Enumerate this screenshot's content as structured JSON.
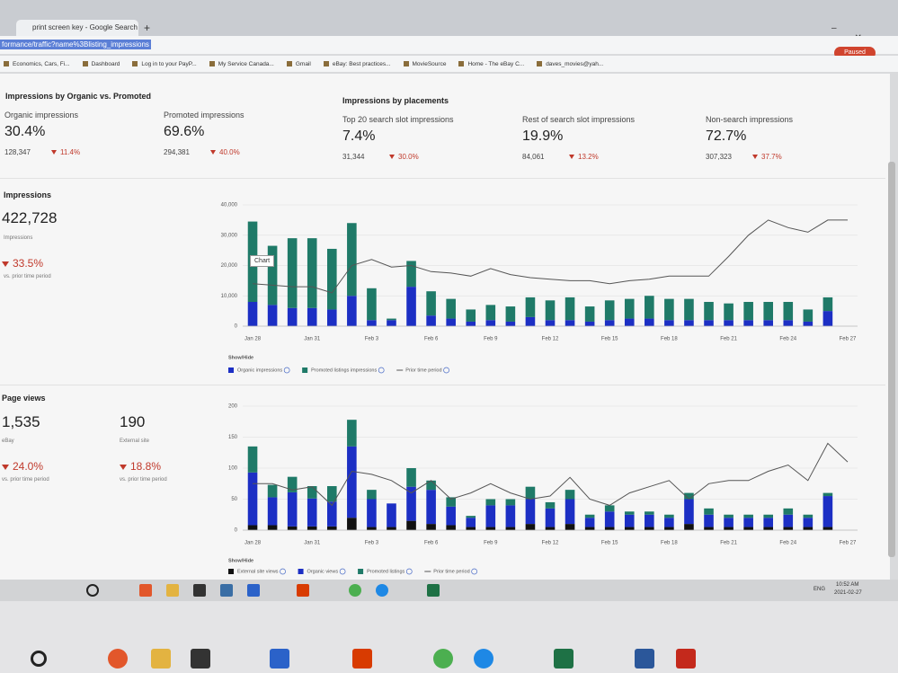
{
  "browser": {
    "tab_title": "print screen key - Google Search",
    "address": "formance/traffic?name%3Blisting_impressions",
    "profile_button": "Paused",
    "bookmarks": [
      "Economics, Cars, Fi...",
      "Dashboard",
      "Log in to your PayP...",
      "My Service Canada...",
      "Gmail",
      "eBay: Best practices...",
      "MovieSource",
      "Home - The eBay C...",
      "daves_movies@yah..."
    ]
  },
  "summary_organic_promoted": {
    "title": "Impressions by Organic vs. Promoted",
    "metrics": [
      {
        "label": "Organic impressions",
        "percent": "30.4%",
        "count": "128,347",
        "change": "11.4%"
      },
      {
        "label": "Promoted impressions",
        "percent": "69.6%",
        "count": "294,381",
        "change": "40.0%"
      }
    ]
  },
  "summary_placements": {
    "title": "Impressions by placements",
    "metrics": [
      {
        "label": "Top 20 search slot impressions",
        "percent": "7.4%",
        "count": "31,344",
        "change": "30.0%"
      },
      {
        "label": "Rest of search slot impressions",
        "percent": "19.9%",
        "count": "84,061",
        "change": "13.2%"
      },
      {
        "label": "Non-search impressions",
        "percent": "72.7%",
        "count": "307,323",
        "change": "37.7%"
      }
    ]
  },
  "impressions_panel": {
    "title": "Impressions",
    "total": "422,728",
    "total_label": "Impressions",
    "change": "33.5%",
    "change_label": "vs. prior time period",
    "tooltip": "Chart",
    "show_hide": "Show/Hide"
  },
  "page_views_panel": {
    "title": "Page views",
    "show_hide": "Show/Hide",
    "metrics": [
      {
        "value": "1,535",
        "label": "eBay",
        "change": "24.0%",
        "change_label": "vs. prior time period"
      },
      {
        "value": "190",
        "label": "External site",
        "change": "18.8%",
        "change_label": "vs. prior time period"
      }
    ]
  },
  "taskbar": {
    "language": "ENG",
    "time": "10:52 AM",
    "date": "2021-02-27"
  },
  "chart_data": [
    {
      "type": "bar",
      "stacked": true,
      "grid": true,
      "categories": [
        "Jan 28",
        null,
        null,
        "Jan 31",
        null,
        null,
        "Feb 3",
        null,
        null,
        "Feb 6",
        null,
        null,
        "Feb 9",
        null,
        null,
        "Feb 12",
        null,
        null,
        "Feb 15",
        null,
        null,
        "Feb 18",
        null,
        null,
        "Feb 21",
        null,
        null,
        "Feb 24",
        null,
        null,
        "Feb 27"
      ],
      "ylim": [
        0,
        40000
      ],
      "yticks": [
        0,
        {
          "value": 10000,
          "label": "10,000"
        },
        {
          "value": 20000,
          "label": "20,000"
        },
        {
          "value": 30000,
          "label": "30,000"
        },
        {
          "value": 40000,
          "label": "40,000"
        }
      ],
      "series": [
        {
          "name": "Organic impressions",
          "type": "bar",
          "color": "#1c2fc4",
          "values": [
            8000,
            7000,
            6000,
            6000,
            5500,
            10000,
            2000,
            2000,
            13000,
            3500,
            2500,
            1500,
            2000,
            1500,
            3000,
            2000,
            2000,
            1500,
            2000,
            2500,
            2500,
            2000,
            2000,
            2000,
            2000,
            2000,
            2000,
            2000,
            1500,
            5000,
            0
          ]
        },
        {
          "name": "Promoted listings impressions",
          "type": "bar",
          "color": "#1f7a68",
          "values": [
            26500,
            19500,
            23000,
            23000,
            20000,
            24000,
            10500,
            500,
            8500,
            8000,
            6500,
            4000,
            5000,
            5000,
            6500,
            6500,
            7500,
            5000,
            6500,
            6500,
            7500,
            7000,
            7000,
            6000,
            5500,
            6000,
            6000,
            6000,
            4000,
            4500,
            0
          ]
        },
        {
          "name": "Prior time period",
          "type": "line",
          "color": "#555555",
          "values": [
            14000,
            13500,
            13000,
            13000,
            11000,
            20000,
            22000,
            19500,
            20000,
            18000,
            17500,
            16500,
            19000,
            17000,
            16000,
            15500,
            15000,
            15000,
            14000,
            15000,
            15500,
            16500,
            16500,
            16500,
            23000,
            30000,
            35000,
            32500,
            31000,
            35000,
            35000
          ]
        }
      ]
    },
    {
      "type": "bar",
      "stacked": true,
      "grid": true,
      "categories": [
        "Jan 28",
        null,
        null,
        "Jan 31",
        null,
        null,
        "Feb 3",
        null,
        null,
        "Feb 6",
        null,
        null,
        "Feb 9",
        null,
        null,
        "Feb 12",
        null,
        null,
        "Feb 15",
        null,
        null,
        "Feb 18",
        null,
        null,
        "Feb 21",
        null,
        null,
        "Feb 24",
        null,
        null,
        "Feb 27"
      ],
      "ylim": [
        0,
        200
      ],
      "yticks": [
        0,
        50,
        100,
        150,
        200
      ],
      "series": [
        {
          "name": "External site views",
          "type": "bar",
          "color": "#111111",
          "values": [
            8,
            8,
            6,
            6,
            6,
            20,
            5,
            5,
            15,
            10,
            8,
            5,
            5,
            5,
            10,
            5,
            10,
            5,
            5,
            5,
            5,
            5,
            10,
            5,
            5,
            5,
            5,
            5,
            5,
            5,
            0
          ]
        },
        {
          "name": "Organic views",
          "type": "bar",
          "color": "#1c2fc4",
          "values": [
            85,
            45,
            55,
            45,
            40,
            115,
            45,
            38,
            55,
            55,
            30,
            15,
            35,
            35,
            40,
            30,
            40,
            15,
            25,
            20,
            20,
            15,
            40,
            20,
            15,
            15,
            15,
            20,
            15,
            50,
            0
          ]
        },
        {
          "name": "Promoted listings",
          "type": "bar",
          "color": "#1f7a68",
          "values": [
            42,
            20,
            25,
            20,
            25,
            43,
            15,
            0,
            30,
            15,
            15,
            3,
            10,
            10,
            20,
            10,
            15,
            5,
            10,
            5,
            5,
            5,
            10,
            10,
            5,
            5,
            5,
            10,
            5,
            5,
            0
          ]
        },
        {
          "name": "Prior time period",
          "type": "line",
          "color": "#555555",
          "values": [
            75,
            75,
            65,
            70,
            40,
            95,
            90,
            80,
            60,
            80,
            50,
            60,
            75,
            60,
            50,
            55,
            85,
            50,
            40,
            60,
            70,
            80,
            50,
            75,
            80,
            80,
            95,
            105,
            80,
            140,
            110
          ]
        }
      ]
    }
  ]
}
